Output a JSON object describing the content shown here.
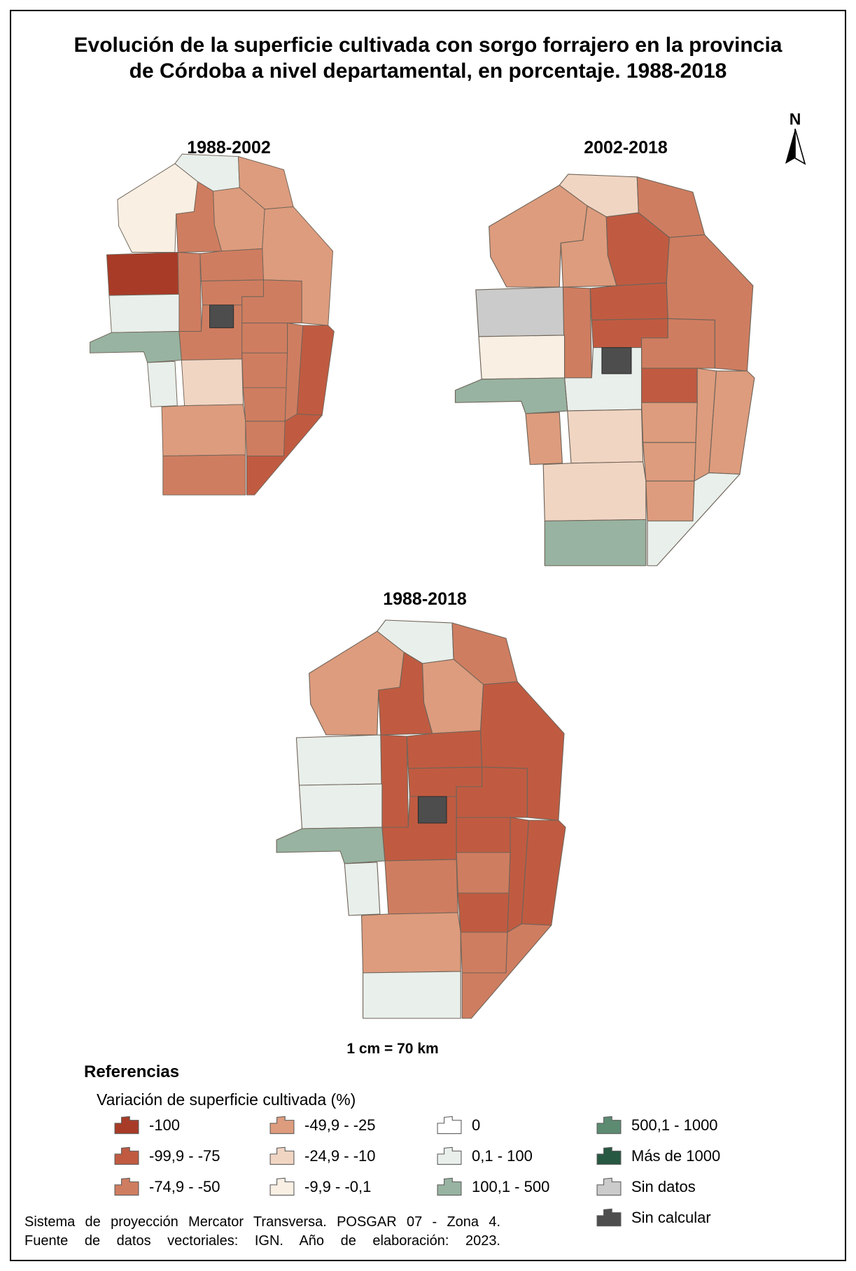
{
  "page": {
    "title_line1": "Evolución de la superficie cultivada con sorgo forrajero en la provincia",
    "title_line2": "de Córdoba a nivel departamental, en porcentaje. 1988-2018",
    "north_label": "N",
    "scale_text": "1 cm = 70 km",
    "footer_line1": "Sistema de proyección Mercator Transversa. POSGAR 07 - Zona 4.",
    "footer_line2": "Fuente de datos vectoriales: IGN. Año de elaboración: 2023."
  },
  "legend": {
    "heading": "Referencias",
    "subheading": "Variación de superficie cultivada (%)",
    "items": [
      {
        "key": "neg100",
        "label": "-100",
        "color": "#A83B27",
        "column": 0
      },
      {
        "key": "neg75",
        "label": "-99,9 - -75",
        "color": "#C05B41",
        "column": 0
      },
      {
        "key": "neg50",
        "label": "-74,9 - -50",
        "color": "#CF7D60",
        "column": 0
      },
      {
        "key": "neg25",
        "label": "-49,9 - -25",
        "color": "#DD9C7D",
        "column": 1
      },
      {
        "key": "neg10",
        "label": "-24,9 - -10",
        "color": "#F1D5C3",
        "column": 1
      },
      {
        "key": "neg01",
        "label": "-9,9 - -0,1",
        "color": "#F9EFE3",
        "column": 1
      },
      {
        "key": "zero",
        "label": "0",
        "color": "#FFFFFF",
        "column": 2
      },
      {
        "key": "pos100",
        "label": "0,1 - 100",
        "color": "#E9EFEB",
        "column": 2
      },
      {
        "key": "pos500",
        "label": "100,1 - 500",
        "color": "#98B3A1",
        "column": 2
      },
      {
        "key": "pos1000",
        "label": "500,1 - 1000",
        "color": "#5C8B72",
        "column": 3
      },
      {
        "key": "above1000",
        "label": "Más de 1000",
        "color": "#275841",
        "column": 3
      },
      {
        "key": "sin_datos",
        "label": "Sin datos",
        "color": "#CBCBCB",
        "column": 3
      },
      {
        "key": "sin_calcular",
        "label": "Sin calcular",
        "color": "#4D4D4D",
        "column": 3
      }
    ]
  },
  "chart_data": {
    "type": "choropleth",
    "region": "Provincia de Córdoba a nivel departamental",
    "variable": "Variación de superficie cultivada (%) de sorgo forrajero",
    "legend_position": "bottom",
    "maps": [
      {
        "title": "1988-2002",
        "departments": {
          "d01": "pos100",
          "d02": "neg25",
          "d03": "neg01",
          "d04": "neg50",
          "d05": "neg25",
          "d06": "neg25",
          "d07": "neg100",
          "d08": "neg50",
          "d09": "neg50",
          "d10": "neg50",
          "d11": "neg50",
          "d12": "pos100",
          "d13": "sin_calcular",
          "d14": "neg50",
          "d15": "neg50",
          "d16": "pos500",
          "d17": "pos100",
          "d18": "neg10",
          "d19": "neg50",
          "d20": "neg50",
          "d21": "neg75",
          "d22": "neg50",
          "d23": "neg25",
          "d24": "neg50",
          "d25": "neg75",
          "d26": "neg50"
        }
      },
      {
        "title": "2002-2018",
        "departments": {
          "d01": "neg10",
          "d02": "neg50",
          "d03": "neg25",
          "d04": "neg25",
          "d05": "neg75",
          "d06": "neg50",
          "d07": "sin_datos",
          "d08": "neg50",
          "d09": "neg75",
          "d10": "neg75",
          "d11": "neg50",
          "d12": "neg01",
          "d13": "sin_calcular",
          "d14": "pos100",
          "d15": "neg75",
          "d16": "pos500",
          "d17": "neg25",
          "d18": "neg10",
          "d19": "neg25",
          "d20": "neg25",
          "d21": "neg25",
          "d22": "neg25",
          "d23": "neg10",
          "d24": "neg25",
          "d25": "pos100",
          "d26": "pos500"
        }
      },
      {
        "title": "1988-2018",
        "departments": {
          "d01": "pos100",
          "d02": "neg50",
          "d03": "neg25",
          "d04": "neg75",
          "d05": "neg25",
          "d06": "neg75",
          "d07": "pos100",
          "d08": "neg75",
          "d09": "neg75",
          "d10": "neg75",
          "d11": "neg75",
          "d12": "pos100",
          "d13": "sin_calcular",
          "d14": "neg75",
          "d15": "neg75",
          "d16": "pos500",
          "d17": "pos100",
          "d18": "neg50",
          "d19": "neg50",
          "d20": "neg75",
          "d21": "neg75",
          "d22": "neg75",
          "d23": "neg25",
          "d24": "neg50",
          "d25": "neg50",
          "d26": "pos100"
        }
      }
    ]
  }
}
